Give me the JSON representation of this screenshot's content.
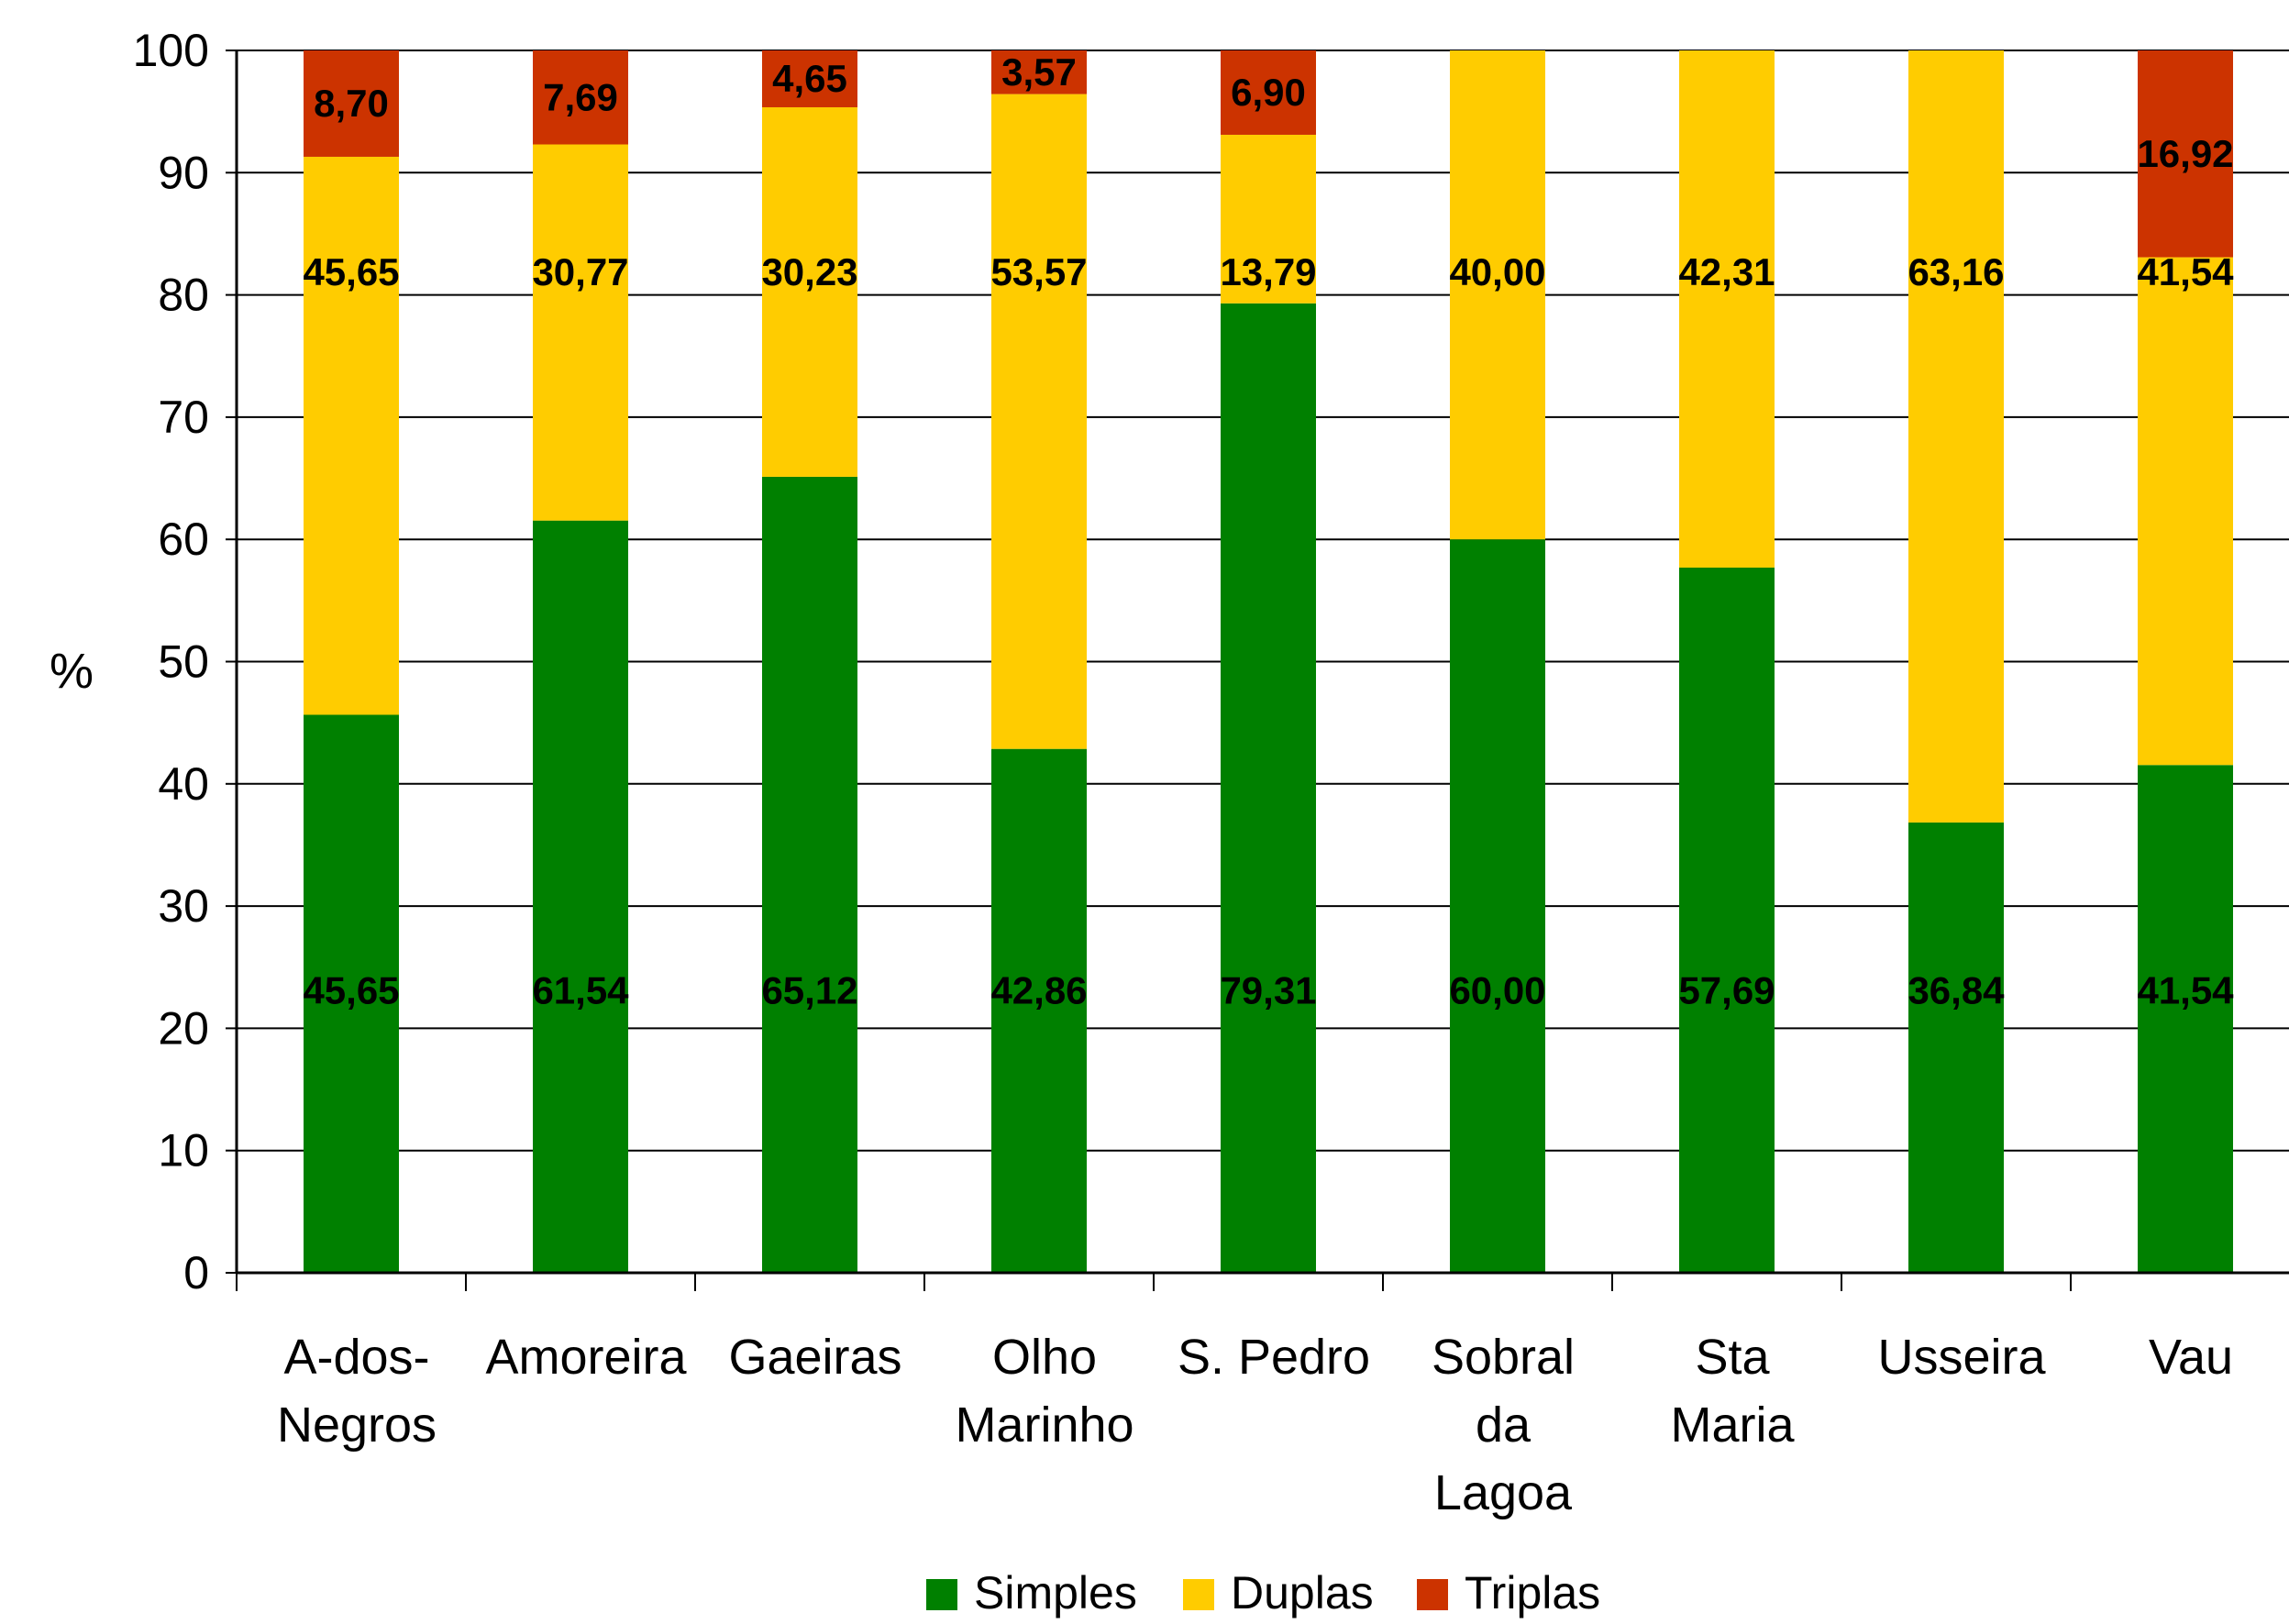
{
  "chart_data": {
    "type": "bar",
    "stacked": true,
    "title": "",
    "xlabel": "",
    "ylabel": "%",
    "ylim": [
      0,
      100
    ],
    "yticks": [
      0,
      10,
      20,
      30,
      40,
      50,
      60,
      70,
      80,
      90,
      100
    ],
    "grid": true,
    "legend_position": "bottom",
    "categories": [
      [
        "A-dos-",
        "Negros"
      ],
      [
        "Amoreira"
      ],
      [
        "Gaeiras"
      ],
      [
        "Olho",
        "Marinho"
      ],
      [
        "S. Pedro"
      ],
      [
        "Sobral",
        "da",
        "Lagoa"
      ],
      [
        "Sta",
        "Maria"
      ],
      [
        "Usseira"
      ],
      [
        "Vau"
      ]
    ],
    "series": [
      {
        "name": "Simples",
        "color": "#008000",
        "values": [
          45.65,
          61.54,
          65.12,
          42.86,
          79.31,
          60.0,
          57.69,
          36.84,
          41.54
        ],
        "labels": [
          "45,65",
          "61,54",
          "65,12",
          "42,86",
          "79,31",
          "60,00",
          "57,69",
          "36,84",
          "41,54"
        ]
      },
      {
        "name": "Duplas",
        "color": "#FFCC00",
        "values": [
          45.65,
          30.77,
          30.23,
          53.57,
          13.79,
          40.0,
          42.31,
          63.16,
          41.54
        ],
        "labels": [
          "45,65",
          "30,77",
          "30,23",
          "53,57",
          "13,79",
          "40,00",
          "42,31",
          "63,16",
          "41,54"
        ]
      },
      {
        "name": "Triplas",
        "color": "#CC3300",
        "values": [
          8.7,
          7.69,
          4.65,
          3.57,
          6.9,
          0,
          0,
          0,
          16.92
        ],
        "labels": [
          "8,70",
          "7,69",
          "4,65",
          "3,57",
          "6,90",
          "",
          "",
          "",
          "16,92"
        ]
      }
    ]
  }
}
